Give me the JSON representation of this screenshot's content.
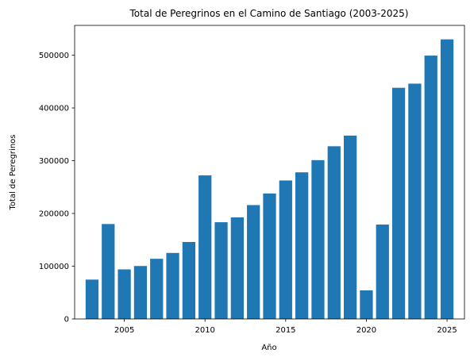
{
  "chart_data": {
    "type": "bar",
    "title": "Total de Peregrinos en el Camino de Santiago (2003-2025)",
    "xlabel": "Año",
    "ylabel": "Total de Peregrinos",
    "x": [
      2003,
      2004,
      2005,
      2006,
      2007,
      2008,
      2009,
      2010,
      2011,
      2012,
      2013,
      2014,
      2015,
      2016,
      2017,
      2018,
      2019,
      2020,
      2021,
      2022,
      2023,
      2024,
      2025
    ],
    "values": [
      74614,
      179944,
      93924,
      100377,
      114026,
      125141,
      145877,
      272135,
      183366,
      192488,
      215880,
      237886,
      262516,
      277915,
      301036,
      327378,
      347578,
      54144,
      178912,
      438182,
      446035,
      499239,
      530000
    ],
    "xlim": [
      2001.92,
      2026.08
    ],
    "ylim": [
      0,
      556500
    ],
    "xticks": [
      2005,
      2010,
      2015,
      2020,
      2025
    ],
    "yticks": [
      0,
      100000,
      200000,
      300000,
      400000,
      500000
    ],
    "bar_color": "#1f77b4",
    "grid": false,
    "legend": "none"
  }
}
